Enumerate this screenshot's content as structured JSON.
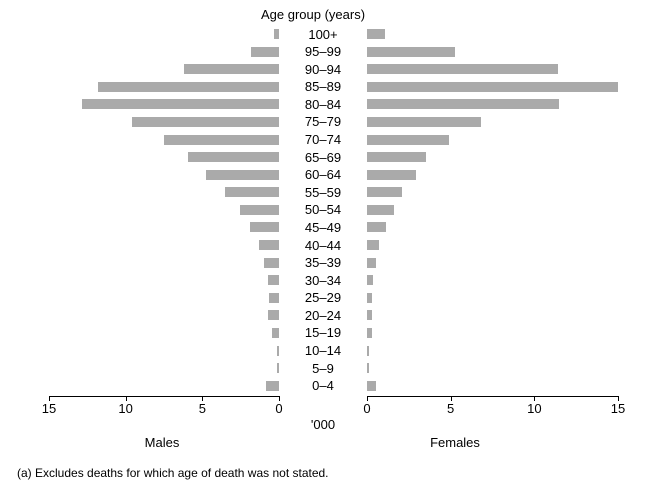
{
  "chart_data": {
    "type": "bar",
    "subtype": "population_pyramid",
    "title": "Age group (years)",
    "xlabel": "'000",
    "categories": [
      "100+",
      "95–99",
      "90–94",
      "85–89",
      "80–84",
      "75–79",
      "70–74",
      "65–69",
      "60–64",
      "55–59",
      "50–54",
      "45–49",
      "40–44",
      "35–39",
      "30–34",
      "25–29",
      "20–24",
      "15–19",
      "10–14",
      "5–9",
      "0–4"
    ],
    "series": [
      {
        "name": "Males",
        "side": "left",
        "values": [
          0.3,
          1.8,
          6.2,
          11.8,
          12.85,
          9.6,
          7.5,
          5.95,
          4.75,
          3.5,
          2.55,
          1.9,
          1.3,
          1.0,
          0.7,
          0.65,
          0.7,
          0.45,
          0.15,
          0.15,
          0.85
        ]
      },
      {
        "name": "Females",
        "side": "right",
        "values": [
          1.1,
          5.25,
          11.4,
          15.0,
          11.5,
          6.8,
          4.9,
          3.5,
          2.9,
          2.1,
          1.6,
          1.15,
          0.7,
          0.55,
          0.35,
          0.3,
          0.3,
          0.3,
          0.1,
          0.1,
          0.55
        ]
      }
    ],
    "axis": {
      "ticks": [
        0,
        5,
        10,
        15
      ],
      "max": 15,
      "unit": "thousands"
    },
    "grid": false,
    "bar_color": "#aaaaaa"
  },
  "footnote": "(a) Excludes deaths for which age of death was not stated."
}
